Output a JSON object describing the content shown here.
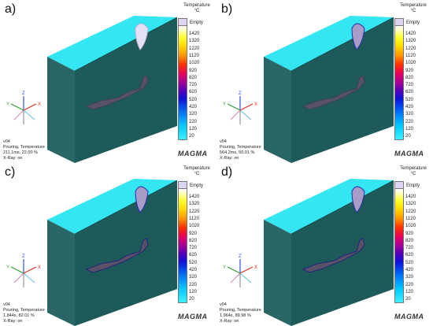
{
  "panels": [
    {
      "label": "a)",
      "colorbar": {
        "title": "Temperature",
        "unit": "°C",
        "empty_label": "Empty",
        "ticks": [
          "1420",
          "1320",
          "1220",
          "1120",
          "1020",
          "920",
          "820",
          "720",
          "620",
          "520",
          "420",
          "320",
          "220",
          "120",
          "20"
        ]
      },
      "info": {
        "line1": "v04",
        "line2": "Pouring, Temperature",
        "line3": "211.1ms, 22.00 %",
        "line4": "X-Ray: on"
      },
      "logo": "MAGMA",
      "axes": {
        "x": "X",
        "y": "Y",
        "z": "Z"
      }
    },
    {
      "label": "b)",
      "colorbar": {
        "title": "Temperature",
        "unit": "°C",
        "empty_label": "Empty",
        "ticks": [
          "1420",
          "1320",
          "1220",
          "1120",
          "1020",
          "920",
          "820",
          "720",
          "620",
          "520",
          "420",
          "320",
          "220",
          "120",
          "20"
        ]
      },
      "info": {
        "line1": "v04",
        "line2": "Pouring, Temperature",
        "line3": "564.2ms, 50.01 %",
        "line4": "X-Ray: on"
      },
      "logo": "MAGMA",
      "axes": {
        "x": "X",
        "y": "Y",
        "z": "Z"
      }
    },
    {
      "label": "c)",
      "colorbar": {
        "title": "Temperature",
        "unit": "°C",
        "empty_label": "Empty",
        "ticks": [
          "1420",
          "1320",
          "1220",
          "1120",
          "1020",
          "920",
          "820",
          "720",
          "620",
          "520",
          "420",
          "320",
          "220",
          "120",
          "20"
        ]
      },
      "info": {
        "line1": "v04",
        "line2": "Pouring, Temperature",
        "line3": "1.844s, 82.01 %",
        "line4": "X-Ray: on"
      },
      "logo": "MAGMA",
      "axes": {
        "x": "X",
        "y": "Y",
        "z": "Z"
      }
    },
    {
      "label": "d)",
      "colorbar": {
        "title": "Temperature",
        "unit": "°C",
        "empty_label": "Empty",
        "ticks": [
          "1420",
          "1320",
          "1220",
          "1120",
          "1020",
          "920",
          "820",
          "720",
          "620",
          "520",
          "420",
          "320",
          "220",
          "120",
          "20"
        ]
      },
      "info": {
        "line1": "v04",
        "line2": "Pouring, Temperature",
        "line3": "1.964s, 89.98 %",
        "line4": "X-Ray: on"
      },
      "logo": "MAGMA",
      "axes": {
        "x": "X",
        "y": "Y",
        "z": "Z"
      }
    }
  ],
  "colors": {
    "mold_top": "#33e6f2",
    "mold_front": "#1f5a5a",
    "mold_side": "#2a6666",
    "casting": "#595266",
    "empty": "#dcd4f0",
    "logo_accent": "#c8102e"
  }
}
